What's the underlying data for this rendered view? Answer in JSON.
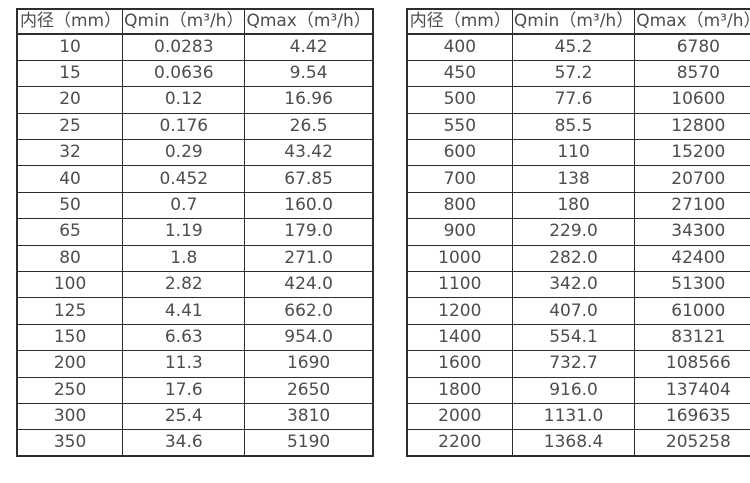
{
  "colors": {
    "border": "#2e2e2e",
    "text": "#4d4d4d",
    "background": "#ffffff"
  },
  "tables": [
    {
      "name": "flow-rate-table-small-diameters",
      "headers": [
        "内径（mm）",
        "Qmin（m³/h）",
        "Qmax（m³/h）"
      ],
      "rows": [
        [
          "10",
          "0.0283",
          "4.42"
        ],
        [
          "15",
          "0.0636",
          "9.54"
        ],
        [
          "20",
          "0.12",
          "16.96"
        ],
        [
          "25",
          "0.176",
          "26.5"
        ],
        [
          "32",
          "0.29",
          "43.42"
        ],
        [
          "40",
          "0.452",
          "67.85"
        ],
        [
          "50",
          "0.7",
          "160.0"
        ],
        [
          "65",
          "1.19",
          "179.0"
        ],
        [
          "80",
          "1.8",
          "271.0"
        ],
        [
          "100",
          "2.82",
          "424.0"
        ],
        [
          "125",
          "4.41",
          "662.0"
        ],
        [
          "150",
          "6.63",
          "954.0"
        ],
        [
          "200",
          "11.3",
          "1690"
        ],
        [
          "250",
          "17.6",
          "2650"
        ],
        [
          "300",
          "25.4",
          "3810"
        ],
        [
          "350",
          "34.6",
          "5190"
        ]
      ]
    },
    {
      "name": "flow-rate-table-large-diameters",
      "headers": [
        "内径（mm）",
        "Qmin（m³/h）",
        "Qmax（m³/h）"
      ],
      "rows": [
        [
          "400",
          "45.2",
          "6780"
        ],
        [
          "450",
          "57.2",
          "8570"
        ],
        [
          "500",
          "77.6",
          "10600"
        ],
        [
          "550",
          "85.5",
          "12800"
        ],
        [
          "600",
          "110",
          "15200"
        ],
        [
          "700",
          "138",
          "20700"
        ],
        [
          "800",
          "180",
          "27100"
        ],
        [
          "900",
          "229.0",
          "34300"
        ],
        [
          "1000",
          "282.0",
          "42400"
        ],
        [
          "1100",
          "342.0",
          "51300"
        ],
        [
          "1200",
          "407.0",
          "61000"
        ],
        [
          "1400",
          "554.1",
          "83121"
        ],
        [
          "1600",
          "732.7",
          "108566"
        ],
        [
          "1800",
          "916.0",
          "137404"
        ],
        [
          "2000",
          "1131.0",
          "169635"
        ],
        [
          "2200",
          "1368.4",
          "205258"
        ]
      ]
    }
  ]
}
